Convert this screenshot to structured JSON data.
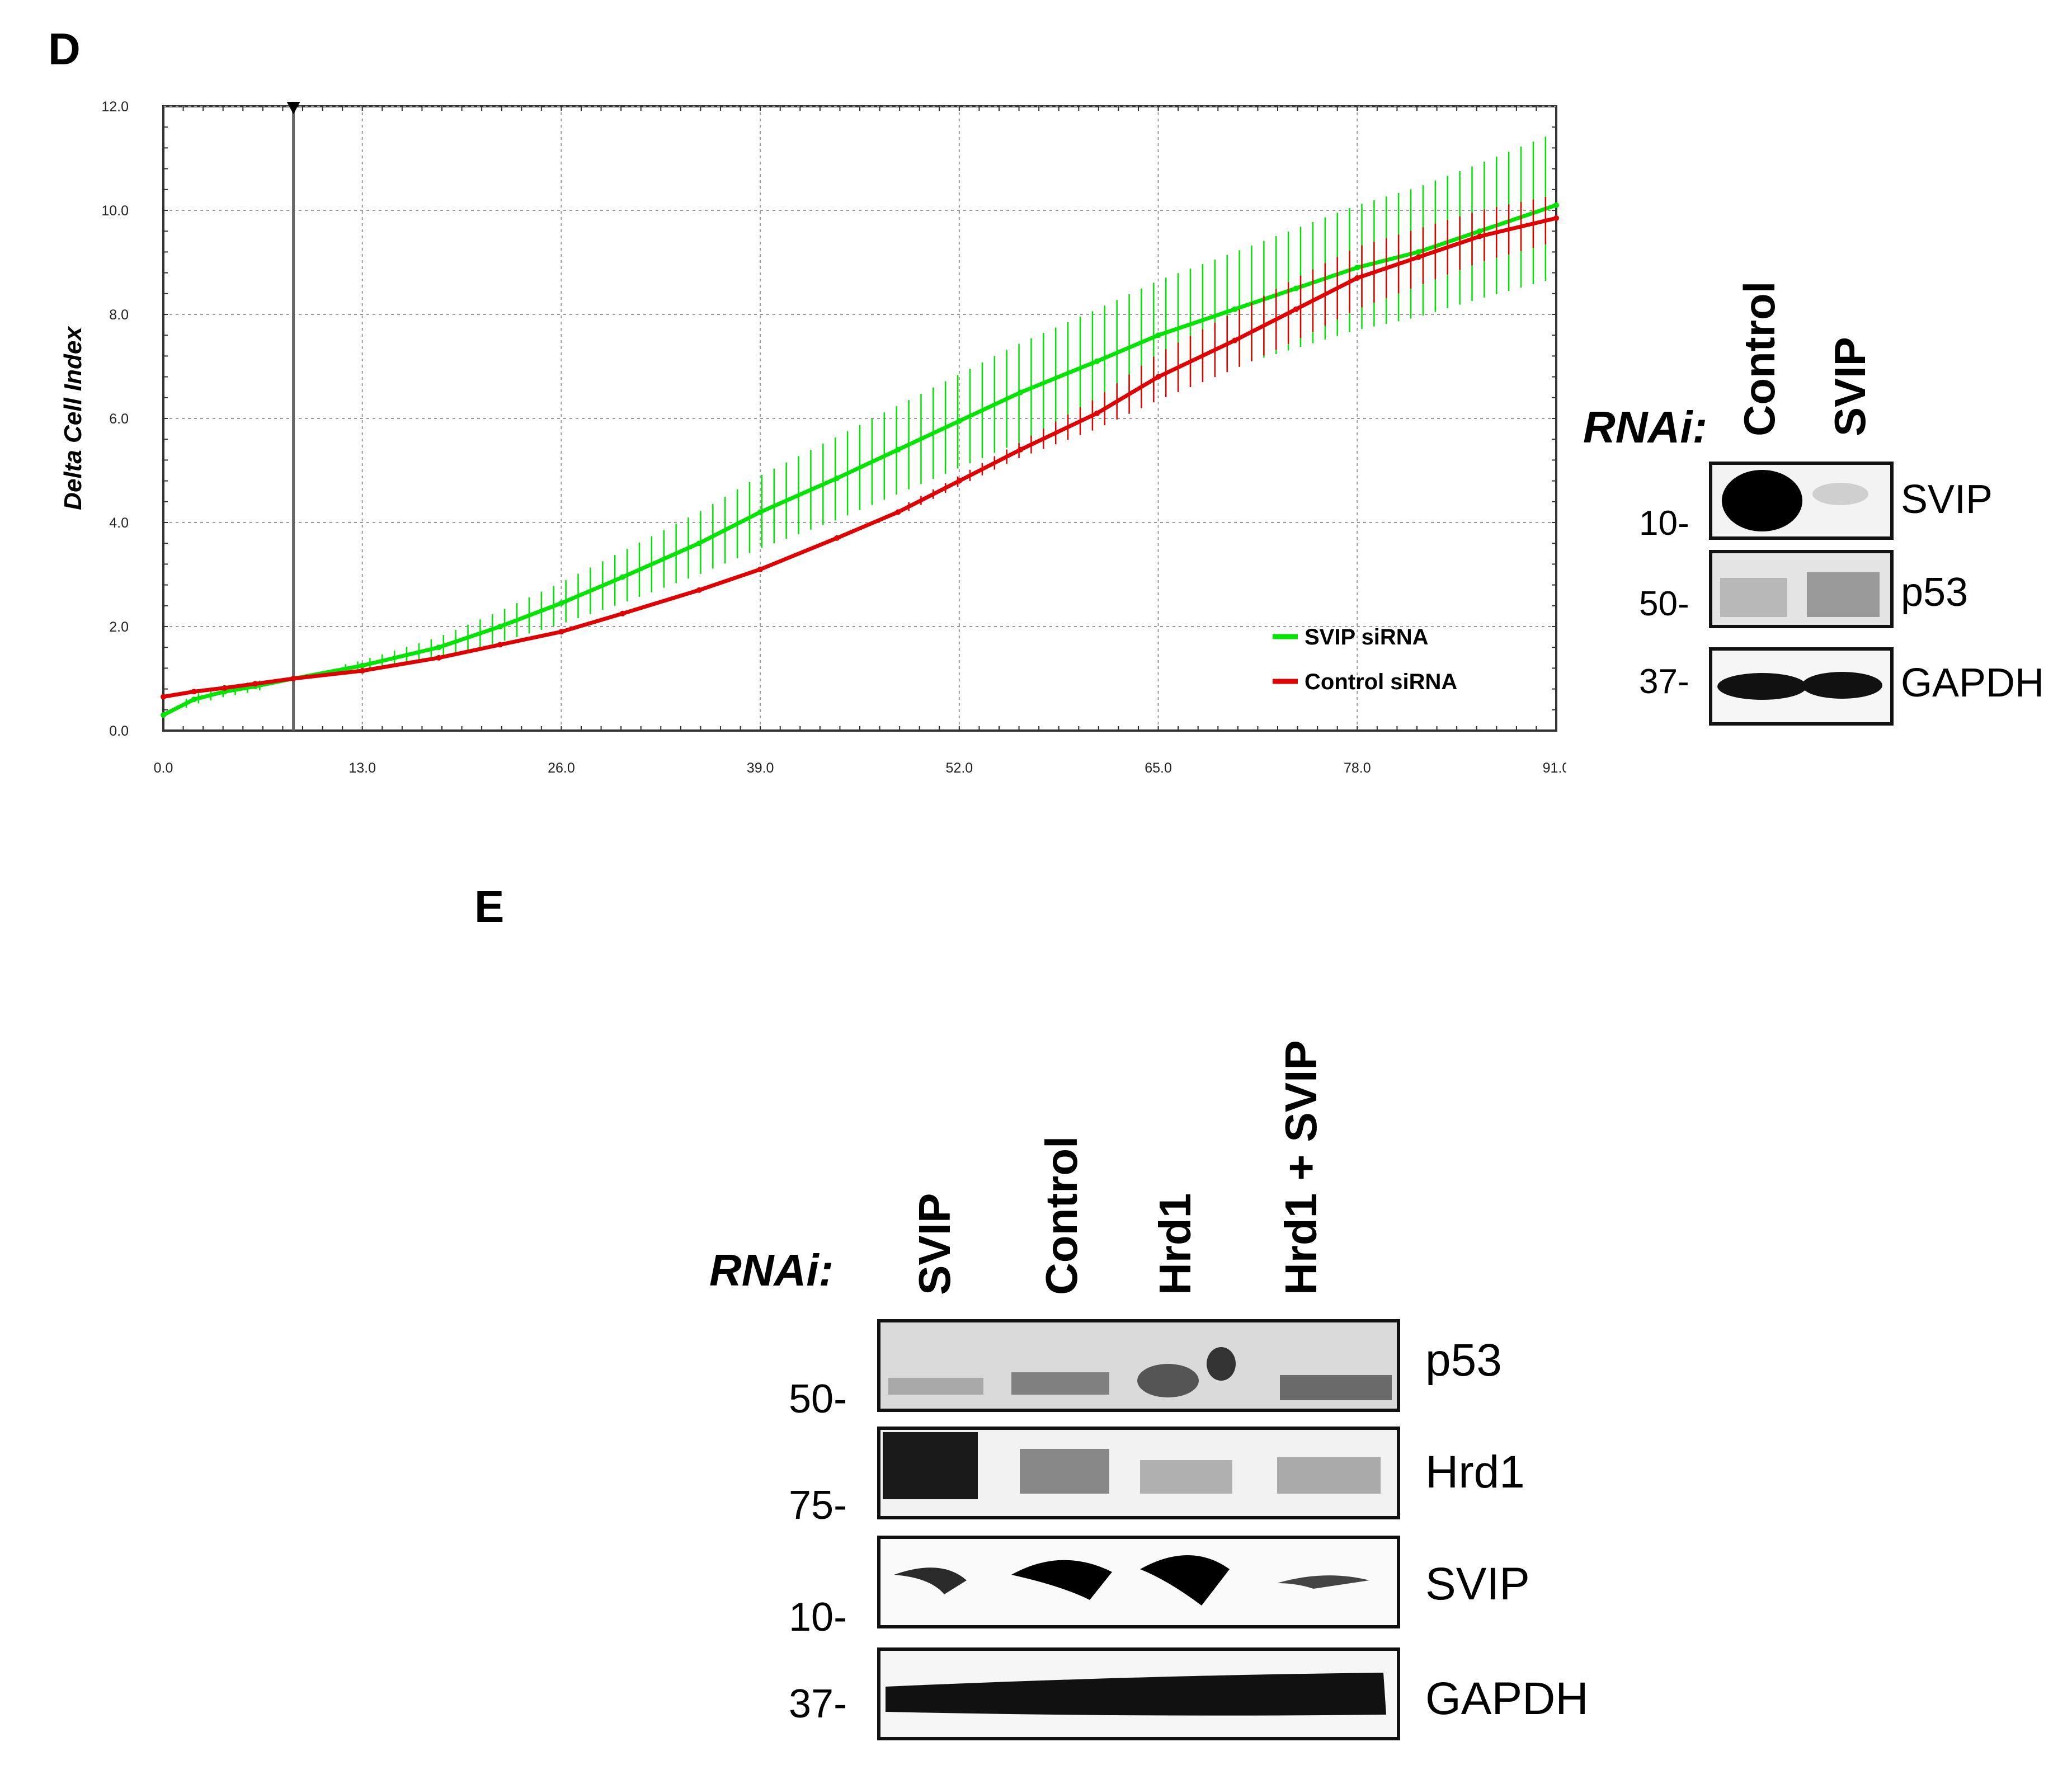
{
  "panels": {
    "d": "D",
    "e": "E"
  },
  "chart_data": {
    "type": "line",
    "title": "",
    "xlabel": "",
    "ylabel": "Delta Cell Index",
    "xlim": [
      0,
      91
    ],
    "ylim": [
      0,
      12
    ],
    "x_ticks": [
      "0.0",
      "13.0",
      "26.0",
      "39.0",
      "52.0",
      "65.0",
      "78.0",
      "91.0"
    ],
    "y_ticks": [
      "0.0",
      "2.0",
      "4.0",
      "6.0",
      "8.0",
      "10.0",
      "12.0"
    ],
    "marker_time": 8.5,
    "grid": true,
    "legend_position": "bottom-right",
    "series": [
      {
        "name": "SVIP siRNA",
        "color": "#00e400",
        "x": [
          0,
          2,
          4,
          6,
          8.5,
          13,
          18,
          22,
          26,
          30,
          35,
          39,
          44,
          48,
          52,
          56,
          61,
          65,
          70,
          74,
          78,
          82,
          86,
          91
        ],
        "y": [
          0.3,
          0.6,
          0.75,
          0.85,
          1.0,
          1.25,
          1.6,
          2.0,
          2.45,
          2.95,
          3.6,
          4.2,
          4.85,
          5.4,
          5.95,
          6.5,
          7.1,
          7.6,
          8.1,
          8.5,
          8.9,
          9.2,
          9.6,
          10.1
        ],
        "error": [
          0.05,
          0.1,
          0.1,
          0.1,
          0.05,
          0.1,
          0.2,
          0.3,
          0.4,
          0.5,
          0.6,
          0.7,
          0.8,
          0.85,
          0.9,
          0.95,
          1.0,
          1.05,
          1.1,
          1.15,
          1.2,
          1.25,
          1.3,
          1.4
        ]
      },
      {
        "name": "Control siRNA",
        "color": "#e00000",
        "x": [
          0,
          2,
          4,
          6,
          8.5,
          13,
          18,
          22,
          26,
          30,
          35,
          39,
          44,
          48,
          52,
          56,
          61,
          65,
          70,
          74,
          78,
          82,
          86,
          91
        ],
        "y": [
          0.65,
          0.75,
          0.82,
          0.9,
          1.0,
          1.15,
          1.4,
          1.65,
          1.9,
          2.25,
          2.7,
          3.1,
          3.7,
          4.2,
          4.8,
          5.4,
          6.1,
          6.8,
          7.5,
          8.1,
          8.7,
          9.1,
          9.5,
          9.85
        ],
        "error": [
          0.05,
          0.05,
          0.05,
          0.05,
          0.05,
          0.05,
          0.05,
          0.05,
          0.05,
          0.05,
          0.05,
          0.06,
          0.06,
          0.08,
          0.1,
          0.15,
          0.3,
          0.45,
          0.55,
          0.6,
          0.6,
          0.55,
          0.5,
          0.45
        ]
      }
    ]
  },
  "blot_d": {
    "rnai_label": "RNAi:",
    "lanes": [
      "Control",
      "SVIP"
    ],
    "rows": [
      {
        "label": "SVIP",
        "mw": "10-"
      },
      {
        "label": "p53",
        "mw": "50-"
      },
      {
        "label": "GAPDH",
        "mw": "37-"
      }
    ]
  },
  "blot_e": {
    "rnai_label": "RNAi:",
    "lanes": [
      "SVIP",
      "Control",
      "Hrd1",
      "Hrd1 + SVIP"
    ],
    "rows": [
      {
        "label": "p53",
        "mw": "50-"
      },
      {
        "label": "Hrd1",
        "mw": "75-"
      },
      {
        "label": "SVIP",
        "mw": "10-"
      },
      {
        "label": "GAPDH",
        "mw": "37-"
      }
    ]
  },
  "colors": {
    "svip": "#00e400",
    "control": "#e00000"
  }
}
